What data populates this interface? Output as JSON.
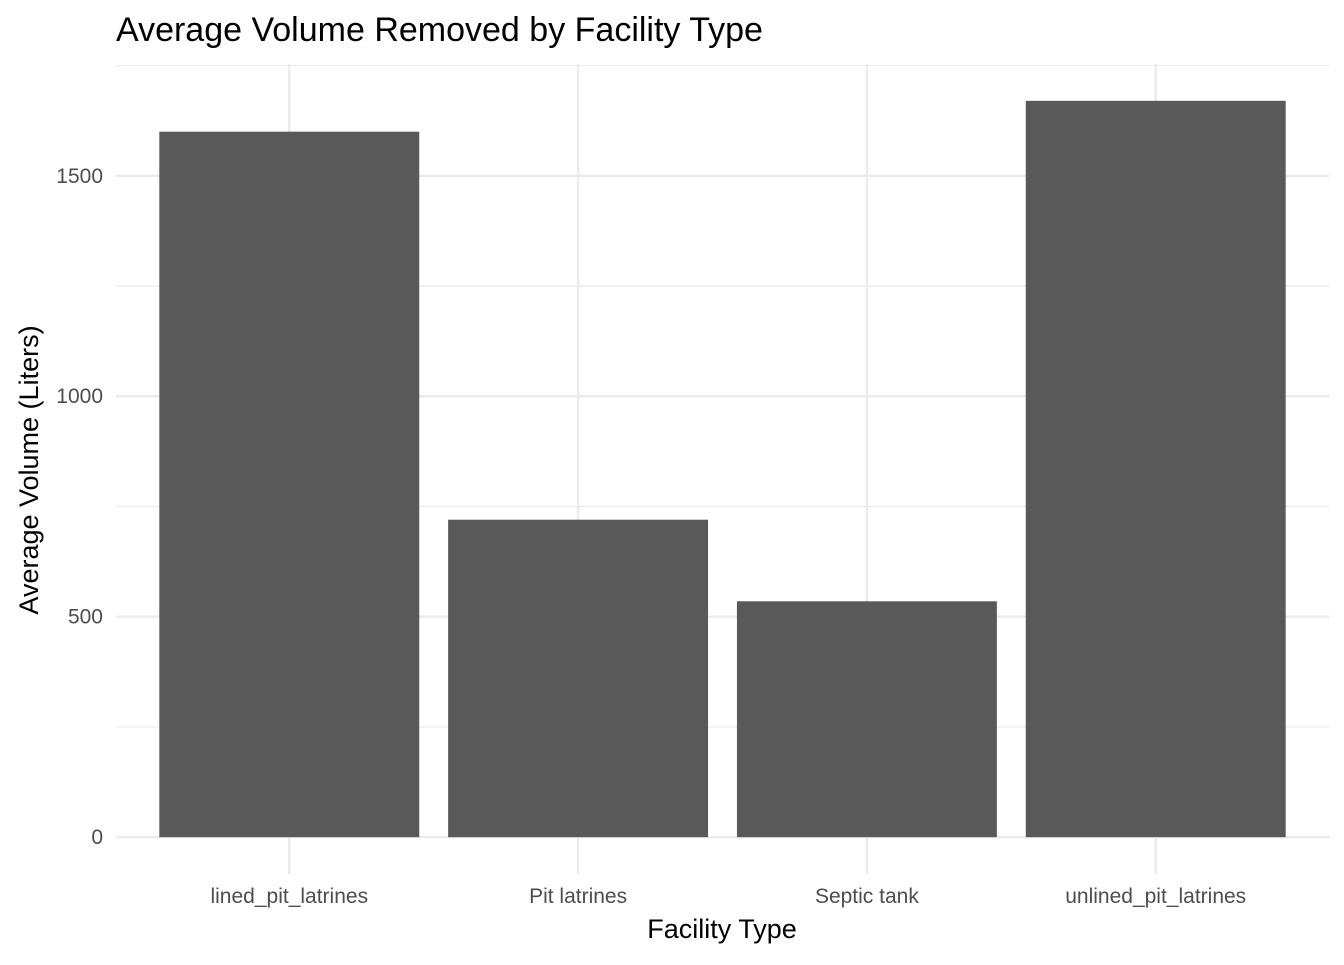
{
  "chart_data": {
    "type": "bar",
    "title": "Average Volume Removed by Facility Type",
    "xlabel": "Facility Type",
    "ylabel": "Average Volume (Liters)",
    "categories": [
      "lined_pit_latrines",
      "Pit latrines",
      "Septic tank",
      "unlined_pit_latrines"
    ],
    "values": [
      1600,
      720,
      535,
      1670
    ],
    "ylim": [
      -83.5,
      1753.5
    ],
    "yticks": [
      0,
      500,
      1000,
      1500
    ],
    "ytick_labels": [
      "0",
      "500",
      "1000",
      "1500"
    ],
    "grid": true,
    "bar_color": "#595959",
    "grid_color": "#ebebeb"
  }
}
